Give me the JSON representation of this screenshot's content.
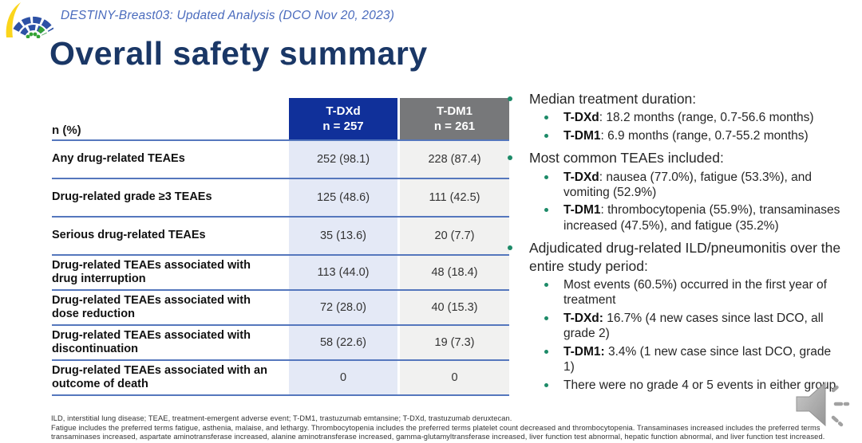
{
  "header": {
    "study_line": "DESTINY-Breast03: Updated Analysis (DCO Nov 20, 2023)"
  },
  "title": "Overall safety summary",
  "table": {
    "corner_label": "n (%)",
    "columns": [
      {
        "label": "T-DXd",
        "sub": "n = 257"
      },
      {
        "label": "T-DM1",
        "sub": "n = 261"
      }
    ],
    "rows": [
      {
        "label": "Any drug-related TEAEs",
        "tdxd": "252 (98.1)",
        "tdm1": "228 (87.4)"
      },
      {
        "label": "Drug-related grade ≥3 TEAEs",
        "tdxd": "125 (48.6)",
        "tdm1": "111 (42.5)"
      },
      {
        "label": "Serious drug-related TEAEs",
        "tdxd": "35 (13.6)",
        "tdm1": "20 (7.7)"
      },
      {
        "label": "Drug-related TEAEs associated with drug interruption",
        "tdxd": "113 (44.0)",
        "tdm1": "48 (18.4)"
      },
      {
        "label": "Drug-related TEAEs associated with dose reduction",
        "tdxd": "72 (28.0)",
        "tdm1": "40 (15.3)"
      },
      {
        "label": "Drug-related TEAEs associated with discontinuation",
        "tdxd": "58 (22.6)",
        "tdm1": "19 (7.3)"
      },
      {
        "label": "Drug-related TEAEs associated with an outcome of death",
        "tdxd": "0",
        "tdm1": "0"
      }
    ]
  },
  "right_panel": {
    "bullets": [
      {
        "segments": [
          {
            "text": "Median treatment duration:",
            "bold": false
          }
        ],
        "subs": [
          {
            "segments": [
              {
                "text": "T-DXd",
                "bold": true
              },
              {
                "text": ": 18.2 months (range, 0.7-56.6 months)",
                "bold": false
              }
            ]
          },
          {
            "segments": [
              {
                "text": "T-DM1",
                "bold": true
              },
              {
                "text": ": 6.9 months (range, 0.7-55.2 months)",
                "bold": false
              }
            ]
          }
        ]
      },
      {
        "segments": [
          {
            "text": "Most common TEAEs included:",
            "bold": false
          }
        ],
        "subs": [
          {
            "segments": [
              {
                "text": "T-DXd",
                "bold": true
              },
              {
                "text": ": nausea (77.0%), fatigue (53.3%), and vomiting (52.9%)",
                "bold": false
              }
            ]
          },
          {
            "segments": [
              {
                "text": "T-DM1",
                "bold": true
              },
              {
                "text": ": thrombocytopenia (55.9%), transaminases increased (47.5%), and fatigue (35.2%)",
                "bold": false
              }
            ]
          }
        ]
      },
      {
        "segments": [
          {
            "text": "Adjudicated drug-related ILD/pneumonitis over the entire study period:",
            "bold": false
          }
        ],
        "subs": [
          {
            "segments": [
              {
                "text": "Most events (60.5%) occurred in the first year of treatment",
                "bold": false
              }
            ]
          },
          {
            "segments": [
              {
                "text": "T-DXd:",
                "bold": true
              },
              {
                "text": " 16.7% (4 new cases since last DCO, all grade 2)",
                "bold": false
              }
            ]
          },
          {
            "segments": [
              {
                "text": "T-DM1:",
                "bold": true
              },
              {
                "text": " 3.4% (1 new case since last DCO, grade 1)",
                "bold": false
              }
            ]
          },
          {
            "segments": [
              {
                "text": "There were no grade 4 or 5 events in either group",
                "bold": false
              }
            ]
          }
        ]
      }
    ]
  },
  "footnotes": [
    "ILD, interstitial lung disease; TEAE, treatment-emergent adverse event; T-DM1, trastuzumab emtansine; T-DXd, trastuzumab deruxtecan.",
    "Fatigue includes the preferred terms fatigue, asthenia, malaise, and lethargy. Thrombocytopenia includes the preferred terms platelet count decreased and thrombocytopenia. Transaminases increased includes the preferred terms",
    "transaminases increased, aspartate aminotransferase increased, alanine aminotransferase increased, gamma-glutamyltransferase increased, liver function test abnormal, hepatic function abnormal, and liver function test increased."
  ],
  "icons": {
    "logo": "conference-fan-logo",
    "audio": "speaker-icon",
    "bullet": "green-dot"
  },
  "colors": {
    "tdxd_header_bg": "#10309A",
    "tdm1_header_bg": "#77787A",
    "tdxd_col_bg": "#E4E9F6",
    "tdm1_col_bg": "#F1F1F0",
    "row_line": "#5577BD",
    "bullet_dot": "#1D8A68",
    "title_text": "#1A3766",
    "brand_text": "#4A6BBD"
  }
}
